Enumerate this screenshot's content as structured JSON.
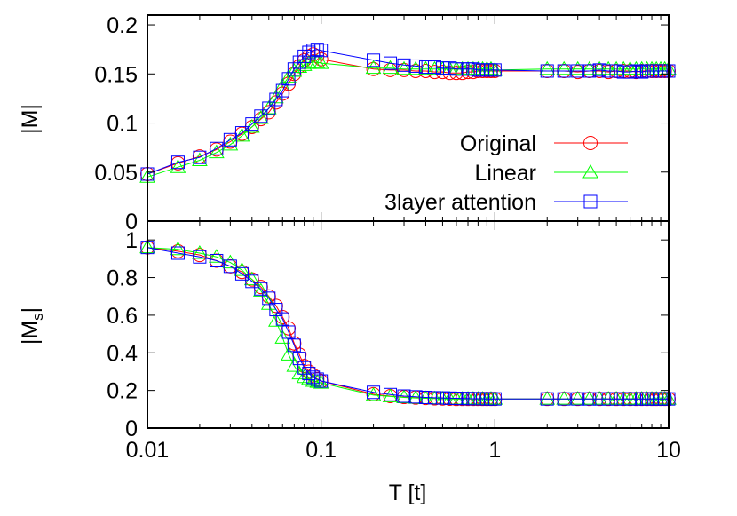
{
  "chart_data": [
    {
      "type": "line",
      "panel": "top",
      "ylabel": "|M|",
      "xlabel": "",
      "xscale": "log",
      "xlim": [
        0.01,
        10
      ],
      "ylim": [
        0,
        0.21
      ],
      "yticks": [
        0,
        0.05,
        0.1,
        0.15,
        0.2
      ],
      "ytick_labels": [
        "0",
        "0.05",
        "0.1",
        "0.15",
        "0.2"
      ],
      "grid": false,
      "legend_placement": "bottom-right",
      "x": [
        0.01,
        0.015,
        0.02,
        0.025,
        0.03,
        0.035,
        0.04,
        0.045,
        0.05,
        0.055,
        0.06,
        0.065,
        0.07,
        0.075,
        0.08,
        0.085,
        0.09,
        0.095,
        0.1,
        0.2,
        0.25,
        0.3,
        0.35,
        0.4,
        0.45,
        0.5,
        0.55,
        0.6,
        0.65,
        0.7,
        0.75,
        0.8,
        0.85,
        0.9,
        0.95,
        1.0,
        2,
        2.5,
        3,
        3.5,
        4,
        4.5,
        5,
        5.5,
        6,
        6.5,
        7,
        7.5,
        8,
        8.5,
        9,
        9.5,
        10
      ],
      "series": [
        {
          "name": "Original",
          "color": "#ff0000",
          "marker": "circle",
          "values": [
            0.048,
            0.059,
            0.066,
            0.073,
            0.081,
            0.089,
            0.096,
            0.104,
            0.111,
            0.121,
            0.13,
            0.14,
            0.15,
            0.158,
            0.164,
            0.168,
            0.17,
            0.168,
            0.165,
            0.155,
            0.154,
            0.154,
            0.153,
            0.153,
            0.152,
            0.152,
            0.151,
            0.151,
            0.151,
            0.152,
            0.152,
            0.153,
            0.153,
            0.153,
            0.153,
            0.153,
            0.153,
            0.153,
            0.152,
            0.153,
            0.153,
            0.152,
            0.153,
            0.153,
            0.153,
            0.152,
            0.153,
            0.153,
            0.153,
            0.153,
            0.153,
            0.153,
            0.153
          ]
        },
        {
          "name": "Linear",
          "color": "#00ff00",
          "marker": "triangle",
          "values": [
            0.045,
            0.055,
            0.062,
            0.07,
            0.078,
            0.087,
            0.096,
            0.105,
            0.115,
            0.126,
            0.138,
            0.147,
            0.153,
            0.157,
            0.159,
            0.161,
            0.162,
            0.162,
            0.161,
            0.156,
            0.156,
            0.155,
            0.155,
            0.155,
            0.155,
            0.155,
            0.155,
            0.155,
            0.155,
            0.155,
            0.155,
            0.155,
            0.155,
            0.155,
            0.155,
            0.154,
            0.155,
            0.155,
            0.155,
            0.155,
            0.155,
            0.155,
            0.155,
            0.155,
            0.155,
            0.155,
            0.155,
            0.155,
            0.155,
            0.155,
            0.155,
            0.155,
            0.155
          ]
        },
        {
          "name": "3layer attention",
          "color": "#0000ff",
          "marker": "square",
          "values": [
            0.048,
            0.06,
            0.065,
            0.074,
            0.083,
            0.09,
            0.099,
            0.107,
            0.115,
            0.124,
            0.133,
            0.145,
            0.155,
            0.162,
            0.168,
            0.172,
            0.174,
            0.175,
            0.174,
            0.164,
            0.161,
            0.159,
            0.158,
            0.157,
            0.157,
            0.156,
            0.156,
            0.155,
            0.155,
            0.155,
            0.155,
            0.154,
            0.154,
            0.154,
            0.154,
            0.154,
            0.153,
            0.153,
            0.153,
            0.153,
            0.154,
            0.153,
            0.153,
            0.152,
            0.152,
            0.153,
            0.152,
            0.153,
            0.153,
            0.153,
            0.153,
            0.153,
            0.153
          ]
        }
      ]
    },
    {
      "type": "line",
      "panel": "bottom",
      "ylabel": "|M",
      "ylabel_sub": "s",
      "ylabel_end": "|",
      "xlabel": "T [t]",
      "xscale": "log",
      "xlim": [
        0.01,
        10
      ],
      "ylim": [
        0,
        1.1
      ],
      "xticks": [
        0.01,
        0.1,
        1,
        10
      ],
      "xtick_labels": [
        "0.01",
        "0.1",
        "1",
        "10"
      ],
      "yticks": [
        0,
        0.2,
        0.4,
        0.6,
        0.8,
        1
      ],
      "ytick_labels": [
        "0",
        "0.2",
        "0.4",
        "0.6",
        "0.8",
        "1"
      ],
      "grid": false,
      "x": [
        0.01,
        0.015,
        0.02,
        0.025,
        0.03,
        0.035,
        0.04,
        0.045,
        0.05,
        0.055,
        0.06,
        0.065,
        0.07,
        0.075,
        0.08,
        0.085,
        0.09,
        0.095,
        0.1,
        0.2,
        0.25,
        0.3,
        0.35,
        0.4,
        0.45,
        0.5,
        0.55,
        0.6,
        0.65,
        0.7,
        0.75,
        0.8,
        0.85,
        0.9,
        0.95,
        1.0,
        2,
        2.5,
        3,
        3.5,
        4,
        4.5,
        5,
        5.5,
        6,
        6.5,
        7,
        7.5,
        8,
        8.5,
        9,
        9.5,
        10
      ],
      "series": [
        {
          "name": "Original",
          "color": "#ff0000",
          "marker": "circle",
          "values": [
            0.96,
            0.94,
            0.92,
            0.89,
            0.86,
            0.83,
            0.79,
            0.75,
            0.7,
            0.65,
            0.59,
            0.53,
            0.45,
            0.39,
            0.33,
            0.3,
            0.28,
            0.26,
            0.25,
            0.18,
            0.17,
            0.165,
            0.162,
            0.16,
            0.158,
            0.157,
            0.156,
            0.155,
            0.155,
            0.155,
            0.155,
            0.155,
            0.155,
            0.155,
            0.155,
            0.155,
            0.155,
            0.155,
            0.155,
            0.155,
            0.155,
            0.155,
            0.155,
            0.155,
            0.155,
            0.155,
            0.155,
            0.155,
            0.155,
            0.155,
            0.155,
            0.155,
            0.155
          ]
        },
        {
          "name": "Linear",
          "color": "#00ff00",
          "marker": "triangle",
          "values": [
            0.96,
            0.95,
            0.93,
            0.91,
            0.88,
            0.84,
            0.79,
            0.73,
            0.66,
            0.57,
            0.48,
            0.39,
            0.33,
            0.29,
            0.27,
            0.26,
            0.25,
            0.245,
            0.24,
            0.175,
            0.168,
            0.163,
            0.16,
            0.158,
            0.157,
            0.156,
            0.155,
            0.155,
            0.155,
            0.155,
            0.155,
            0.155,
            0.155,
            0.155,
            0.155,
            0.155,
            0.155,
            0.155,
            0.155,
            0.155,
            0.155,
            0.155,
            0.155,
            0.155,
            0.155,
            0.155,
            0.155,
            0.155,
            0.155,
            0.155,
            0.155,
            0.155,
            0.155
          ]
        },
        {
          "name": "3layer attention",
          "color": "#0000ff",
          "marker": "square",
          "values": [
            0.96,
            0.93,
            0.91,
            0.89,
            0.86,
            0.82,
            0.78,
            0.74,
            0.69,
            0.63,
            0.58,
            0.51,
            0.44,
            0.37,
            0.32,
            0.29,
            0.27,
            0.26,
            0.25,
            0.19,
            0.178,
            0.17,
            0.166,
            0.163,
            0.161,
            0.16,
            0.159,
            0.158,
            0.157,
            0.157,
            0.156,
            0.156,
            0.156,
            0.155,
            0.155,
            0.155,
            0.155,
            0.155,
            0.155,
            0.155,
            0.155,
            0.155,
            0.155,
            0.155,
            0.155,
            0.155,
            0.155,
            0.155,
            0.155,
            0.155,
            0.155,
            0.155,
            0.155
          ]
        }
      ]
    }
  ]
}
